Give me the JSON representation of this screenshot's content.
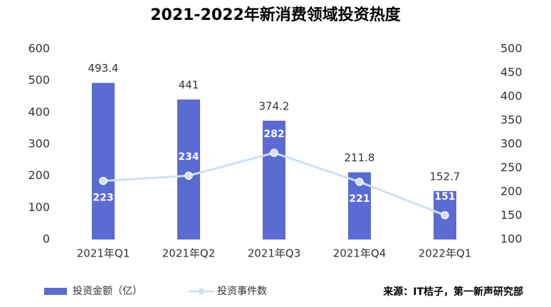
{
  "chart_data": {
    "type": "bar",
    "title": "2021-2022年新消费领域投资热度",
    "categories": [
      "2021年Q1",
      "2021年Q2",
      "2021年Q3",
      "2021年Q4",
      "2022年Q1"
    ],
    "series": [
      {
        "name": "投资金额（亿）",
        "type": "bar",
        "color": "#5b6bd4",
        "values": [
          493.4,
          441,
          374.2,
          211.8,
          152.7
        ]
      },
      {
        "name": "投资事件数",
        "type": "line",
        "axis": "y2",
        "color": "#cfe0f5",
        "values": [
          223,
          234,
          282,
          221,
          151
        ]
      }
    ],
    "ylim": [
      0,
      600
    ],
    "yticks": [
      0,
      100,
      200,
      300,
      400,
      500,
      600
    ],
    "y2lim": [
      100,
      500
    ],
    "y2ticks": [
      100,
      150,
      200,
      250,
      300,
      350,
      400,
      450,
      500
    ],
    "grid": false,
    "source": "来源：IT桔子，第一新声研究部"
  }
}
